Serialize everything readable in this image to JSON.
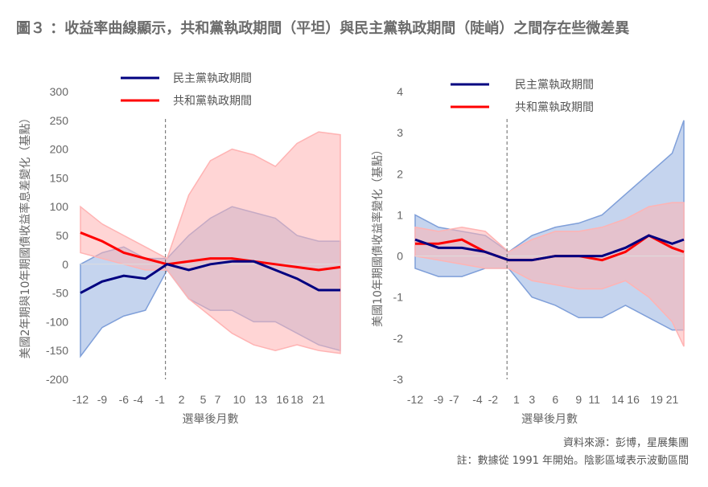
{
  "title": "圖３ ：收益率曲線顯示，共和黨執政期間（平坦）與民主黨執政期間（陡峭）之間存在些微差異",
  "source": "資料來源：彭博，星展集團",
  "note": "註：數據從 1991 年開始。陰影區域表示波動區間",
  "colors": {
    "dem": "#000080",
    "rep": "#ff0000",
    "dem_band": "#7f9fd9",
    "rep_band": "#ffb3b3"
  },
  "chart_data": [
    {
      "type": "line",
      "legend": [
        "民主黨執政期間",
        "共和黨執政期間"
      ],
      "ylabel": "美國2年期與10年期國債收益率息差變化（基點）",
      "xlabel": "選舉後月數",
      "yticks": [
        300,
        250,
        200,
        150,
        100,
        50,
        0,
        -50,
        -100,
        -150,
        -200
      ],
      "ylim": [
        -200,
        300
      ],
      "xticks": [
        -12,
        -9,
        -6,
        -4,
        -1,
        2,
        5,
        7,
        10,
        13,
        16,
        18,
        21
      ],
      "xlim": [
        -12,
        24
      ],
      "x": [
        -12,
        -9,
        -6,
        -3,
        0,
        3,
        6,
        9,
        12,
        15,
        18,
        21,
        24
      ],
      "series": [
        {
          "name": "民主黨執政期間",
          "values": [
            -50,
            -30,
            -20,
            -25,
            0,
            -10,
            0,
            5,
            5,
            -10,
            -25,
            -45,
            -45
          ],
          "upper": [
            0,
            20,
            30,
            10,
            10,
            50,
            80,
            100,
            90,
            80,
            50,
            40,
            40
          ],
          "lower": [
            -160,
            -110,
            -90,
            -80,
            -10,
            -60,
            -80,
            -80,
            -100,
            -100,
            -120,
            -140,
            -150
          ]
        },
        {
          "name": "共和黨執政期間",
          "values": [
            55,
            40,
            20,
            10,
            0,
            5,
            10,
            10,
            5,
            0,
            -5,
            -10,
            -5
          ],
          "upper": [
            100,
            70,
            50,
            30,
            10,
            120,
            180,
            200,
            190,
            170,
            210,
            230,
            225
          ],
          "lower": [
            20,
            10,
            0,
            -10,
            -10,
            -60,
            -90,
            -120,
            -140,
            -150,
            -140,
            -150,
            -155
          ]
        }
      ]
    },
    {
      "type": "line",
      "legend": [
        "民主黨執政期間",
        "共和黨執政期間"
      ],
      "ylabel": "美國10年期國債收益率變化（基點）",
      "xlabel": "選舉後月數",
      "yticks": [
        4,
        3,
        2,
        1,
        0,
        -1,
        -2,
        -3
      ],
      "ylim": [
        -3,
        4
      ],
      "xticks": [
        -12,
        -9,
        -7,
        -4,
        -2,
        1,
        3,
        6,
        9,
        11,
        14,
        16,
        19,
        21
      ],
      "xlim": [
        -12,
        22.5
      ],
      "x": [
        -12,
        -9,
        -6,
        -3,
        0,
        3,
        6,
        9,
        12,
        15,
        18,
        21,
        22.5
      ],
      "series": [
        {
          "name": "民主黨執政期間",
          "values": [
            0.4,
            0.2,
            0.2,
            0.1,
            -0.1,
            -0.1,
            0.0,
            0.0,
            0.0,
            0.2,
            0.5,
            0.3,
            0.4
          ],
          "upper": [
            1.0,
            0.7,
            0.6,
            0.5,
            0.1,
            0.5,
            0.7,
            0.8,
            1.0,
            1.5,
            2.0,
            2.5,
            3.3
          ],
          "lower": [
            -0.3,
            -0.5,
            -0.5,
            -0.3,
            -0.3,
            -1.0,
            -1.2,
            -1.5,
            -1.5,
            -1.2,
            -1.5,
            -1.8,
            -1.8
          ]
        },
        {
          "name": "共和黨執政期間",
          "values": [
            0.3,
            0.3,
            0.4,
            0.1,
            -0.1,
            -0.1,
            0.0,
            0.0,
            -0.1,
            0.1,
            0.5,
            0.2,
            0.1
          ],
          "upper": [
            0.7,
            0.6,
            0.7,
            0.6,
            0.1,
            0.4,
            0.6,
            0.6,
            0.7,
            0.9,
            1.2,
            1.3,
            1.3
          ],
          "lower": [
            0,
            -0.1,
            -0.2,
            -0.3,
            -0.3,
            -0.6,
            -0.7,
            -0.8,
            -0.8,
            -0.6,
            -1.0,
            -1.6,
            -2.2
          ]
        }
      ]
    }
  ]
}
